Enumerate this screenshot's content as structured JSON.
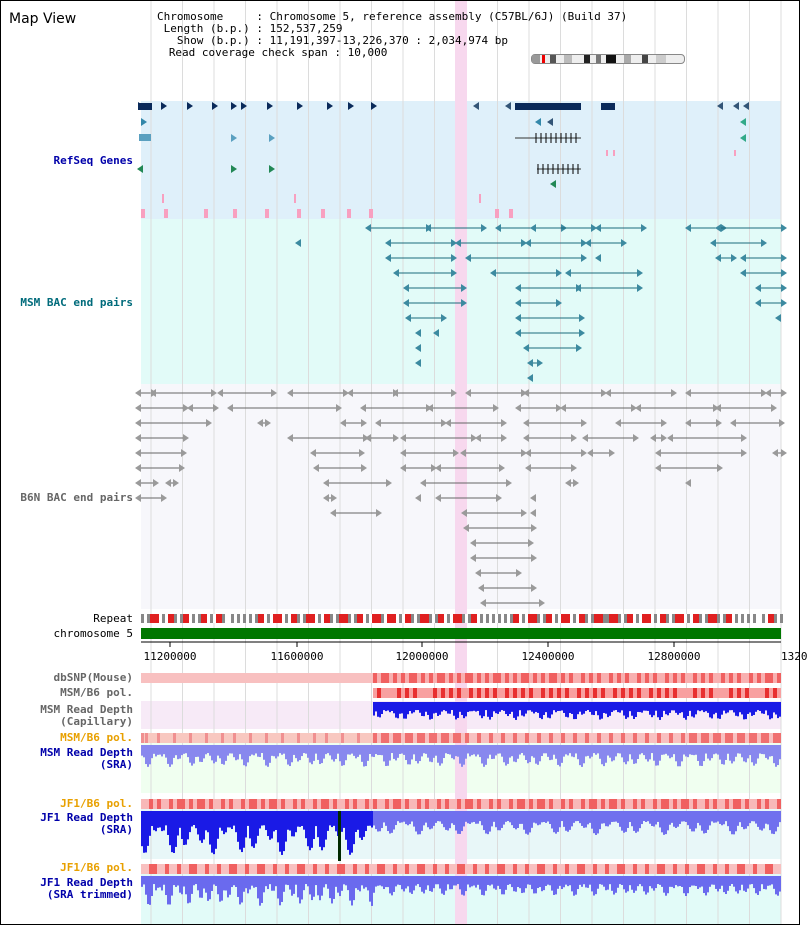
{
  "view": {
    "title": "Map View"
  },
  "info": {
    "rows": [
      {
        "label": "Chromosome     :",
        "value": "Chromosome 5, reference assembly (C57BL/6J) (Build 37)"
      },
      {
        "label": "Length (b.p.) :",
        "value": "152,537,259"
      },
      {
        "label": "Show (b.p.) :",
        "value": "11,191,397-13,226,370 : 2,034,974 bp"
      },
      {
        "label": "Read coverage check span :",
        "value": "10,000"
      }
    ]
  },
  "tracks": {
    "refseq": "RefSeq Genes",
    "msm_bac": "MSM BAC end pairs",
    "b6n_bac": "B6N BAC end pairs",
    "repeat": "Repeat",
    "chromosome": "chromosome 5",
    "dbsnp": "dbSNP(Mouse)",
    "msm_b6_pol": "MSM/B6 pol.",
    "msm_depth_cap_1": "MSM Read Depth",
    "msm_depth_cap_2": "(Capillary)",
    "msm_b6_pol2": "MSM/B6 pol.",
    "msm_depth_sra_1": "MSM Read Depth",
    "msm_depth_sra_2": "(SRA)",
    "jf1_b6_pol": "JF1/B6 pol.",
    "jf1_depth_sra_1": "JF1 Read Depth",
    "jf1_depth_sra_2": "(SRA)",
    "jf1_b6_pol2": "JF1/B6 pol.",
    "jf1_depth_trim_1": "JF1 Read Depth",
    "jf1_depth_trim_2": "(SRA trimmed)"
  },
  "axis": {
    "ticks": [
      "11200000",
      "11600000",
      "12000000",
      "12400000",
      "12800000",
      "1320"
    ]
  },
  "colors": {
    "refseq_bg": "#dff0fa",
    "msm_bg": "#e2fbf8",
    "track_bg": "#f0fff0",
    "highlight": "#f7d8ee",
    "chromosome": "#007700",
    "depth_blue": "#1a1ae6",
    "depth_light": "#8888ee"
  }
}
